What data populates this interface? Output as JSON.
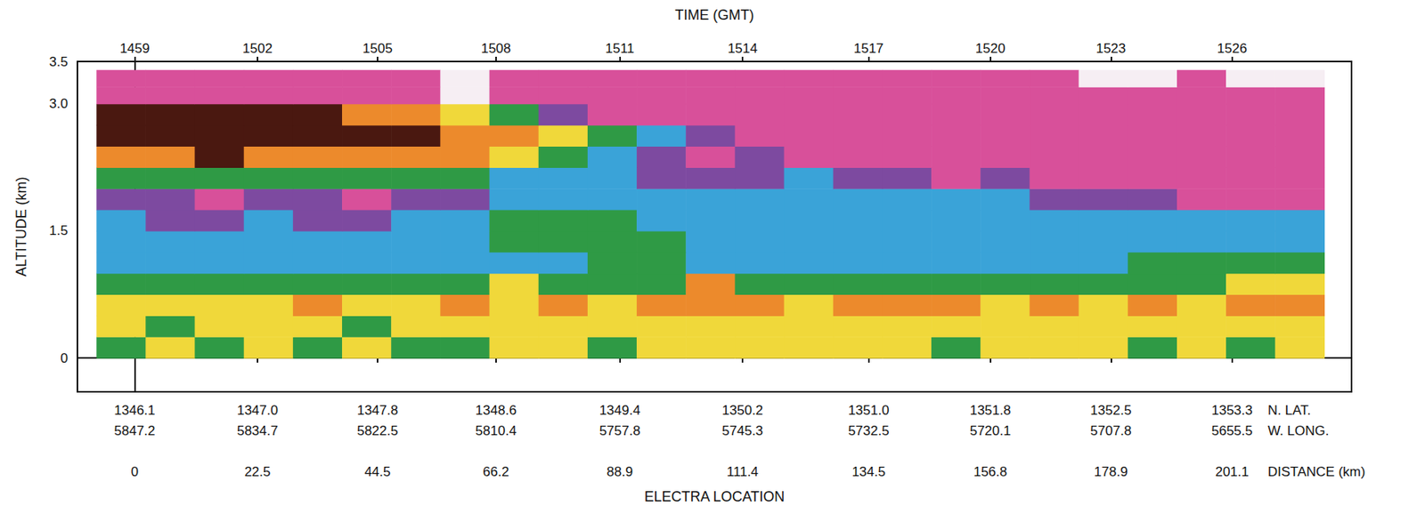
{
  "chart_data": {
    "type": "heatmap",
    "x2label": "TIME (GMT)",
    "xlabel": "ELECTRA LOCATION",
    "ylabel": "ALTITUDE (km)",
    "xlim": [
      -10.5,
      223
    ],
    "xticks": [
      0,
      22.5,
      44.5,
      66.2,
      88.9,
      111.4,
      134.5,
      156.8,
      178.9,
      201.1
    ],
    "xticks_name": "DISTANCE (km)",
    "x2ticks": [
      1459,
      1502,
      1505,
      1508,
      1511,
      1514,
      1517,
      1520,
      1523,
      1526
    ],
    "x_rows": [
      {
        "name": "N. LAT.",
        "labels": [
          1346.1,
          {
            "value": 1347,
            "label": "1347.0"
          },
          1347.8,
          1348.6,
          1349.4,
          1350.2,
          {
            "value": 1351,
            "label": "1351.0"
          },
          1351.8,
          1352.5,
          1353.3
        ]
      },
      {
        "name": "W. LONG.",
        "labels": [
          5847.2,
          5834.7,
          5822.5,
          5810.4,
          5757.8,
          5745.3,
          5732.5,
          5720.1,
          5707.8,
          5655.5
        ]
      }
    ],
    "ylim": [
      -0.4,
      3.5
    ],
    "yticks": [
      0,
      1.5,
      {
        "value": 3,
        "label": "3.0"
      },
      3.5
    ],
    "grid": false,
    "x_edges": [
      -7,
      2,
      11,
      20,
      29,
      38,
      47,
      56,
      65,
      74,
      83,
      92,
      101,
      110,
      119,
      128,
      137,
      146,
      155,
      164,
      173,
      182,
      191,
      200,
      209,
      218
    ],
    "y_edges": [
      0,
      0.25,
      0.5,
      0.75,
      1.0,
      1.25,
      1.5,
      1.75,
      2.0,
      2.25,
      2.5,
      2.75,
      3.0,
      3.2,
      3.4
    ],
    "zlim": [
      0,
      7
    ],
    "z": [
      [
        4,
        5,
        4,
        5,
        4,
        5,
        4,
        4,
        5,
        5,
        4,
        5,
        5,
        5,
        5,
        5,
        5,
        4,
        5,
        5,
        5,
        4,
        5,
        4,
        5
      ],
      [
        5,
        4,
        5,
        5,
        5,
        4,
        5,
        5,
        5,
        5,
        5,
        5,
        5,
        5,
        5,
        5,
        5,
        5,
        5,
        5,
        5,
        5,
        5,
        5,
        5
      ],
      [
        5,
        5,
        5,
        5,
        6,
        5,
        5,
        6,
        5,
        6,
        5,
        6,
        6,
        6,
        5,
        6,
        6,
        6,
        5,
        6,
        5,
        6,
        5,
        6,
        6
      ],
      [
        4,
        4,
        4,
        4,
        4,
        4,
        4,
        4,
        5,
        4,
        4,
        4,
        6,
        4,
        4,
        4,
        4,
        4,
        4,
        4,
        4,
        4,
        4,
        5,
        5
      ],
      [
        3,
        3,
        3,
        3,
        3,
        3,
        3,
        3,
        3,
        3,
        4,
        4,
        3,
        3,
        3,
        3,
        3,
        3,
        3,
        3,
        3,
        4,
        4,
        4,
        4
      ],
      [
        3,
        3,
        3,
        3,
        3,
        3,
        3,
        3,
        4,
        4,
        4,
        4,
        3,
        3,
        3,
        3,
        3,
        3,
        3,
        3,
        3,
        3,
        3,
        3,
        3
      ],
      [
        3,
        2,
        2,
        3,
        2,
        2,
        3,
        3,
        4,
        4,
        4,
        3,
        3,
        3,
        3,
        3,
        3,
        3,
        3,
        3,
        3,
        3,
        3,
        3,
        3
      ],
      [
        2,
        2,
        1,
        2,
        2,
        1,
        2,
        2,
        3,
        3,
        3,
        3,
        3,
        3,
        3,
        3,
        3,
        3,
        3,
        2,
        2,
        2,
        1,
        1,
        1
      ],
      [
        4,
        4,
        4,
        4,
        4,
        4,
        4,
        4,
        3,
        3,
        3,
        2,
        2,
        2,
        3,
        2,
        2,
        1,
        2,
        1,
        1,
        1,
        1,
        1,
        1
      ],
      [
        6,
        6,
        7,
        6,
        6,
        6,
        6,
        6,
        5,
        4,
        3,
        2,
        1,
        2,
        1,
        1,
        1,
        1,
        1,
        1,
        1,
        1,
        1,
        1,
        1
      ],
      [
        7,
        7,
        7,
        7,
        7,
        7,
        7,
        6,
        6,
        5,
        4,
        3,
        2,
        1,
        1,
        1,
        1,
        1,
        1,
        1,
        1,
        1,
        1,
        1,
        1
      ],
      [
        7,
        7,
        7,
        7,
        7,
        6,
        6,
        5,
        4,
        2,
        1,
        1,
        1,
        1,
        1,
        1,
        1,
        1,
        1,
        1,
        1,
        1,
        1,
        1,
        1
      ],
      [
        1,
        1,
        1,
        1,
        1,
        1,
        1,
        0,
        1,
        1,
        1,
        1,
        1,
        1,
        1,
        1,
        1,
        1,
        1,
        1,
        1,
        1,
        1,
        1,
        1
      ],
      [
        1,
        1,
        1,
        1,
        1,
        1,
        1,
        0,
        1,
        1,
        1,
        1,
        1,
        1,
        1,
        1,
        1,
        1,
        1,
        1,
        0,
        0,
        1,
        0,
        0
      ]
    ]
  }
}
